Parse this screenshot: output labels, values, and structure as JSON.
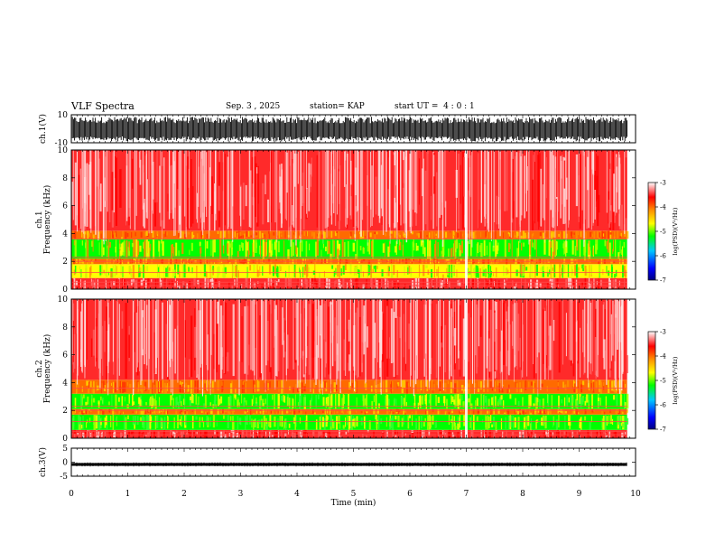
{
  "header": {
    "title": "VLF Spectra",
    "date": "Sep. 3 , 2025",
    "station": "station= KAP",
    "start": "start UT =  4 : 0 : 1"
  },
  "chart_data": [
    {
      "type": "line",
      "panel": "ch1-waveform",
      "ylabel": "ch.1(V)",
      "ylim": [
        -10,
        10
      ],
      "yticks": [
        "10",
        "-10"
      ],
      "description_series": "high-amplitude noisy waveform spanning roughly -9 to 8 V",
      "xlim": [
        0,
        10
      ],
      "data_end_min": 9.85,
      "color": "#000000"
    },
    {
      "type": "heatmap",
      "panel": "ch1-spectrogram",
      "ylabel": "ch.1\nFrequency (kHz)",
      "ylabel_lines": [
        "ch.1",
        "Frequency (kHz)"
      ],
      "ylim": [
        0,
        10
      ],
      "yticks": [
        "0",
        "2",
        "4",
        "6",
        "8",
        "10"
      ],
      "xlim": [
        0,
        10
      ],
      "data_end_min": 9.85,
      "bands": [
        {
          "from_khz": 0.0,
          "to_khz": 0.8,
          "level": "red"
        },
        {
          "from_khz": 0.8,
          "to_khz": 1.8,
          "level": "yellow-green"
        },
        {
          "from_khz": 1.8,
          "to_khz": 2.2,
          "level": "orange"
        },
        {
          "from_khz": 2.2,
          "to_khz": 3.6,
          "level": "green-yellow"
        },
        {
          "from_khz": 3.6,
          "to_khz": 4.2,
          "level": "orange"
        },
        {
          "from_khz": 4.2,
          "to_khz": 10.0,
          "level": "red"
        }
      ],
      "gap_minute": 7.0,
      "colorbar": {
        "label": "log(PSD)(V²/Hz)",
        "ticks": [
          "-3",
          "-4",
          "-5",
          "-6",
          "-7"
        ],
        "range": [
          -7,
          -3
        ],
        "colors": [
          "#000080",
          "#0000ff",
          "#00c8ff",
          "#00ff00",
          "#ffff00",
          "#ff8c00",
          "#ff0000",
          "#ffffff"
        ]
      }
    },
    {
      "type": "heatmap",
      "panel": "ch2-spectrogram",
      "ylabel": "ch.2\nFrequency (kHz)",
      "ylabel_lines": [
        "ch.2",
        "Frequency (kHz)"
      ],
      "ylim": [
        0,
        10
      ],
      "yticks": [
        "0",
        "2",
        "4",
        "6",
        "8",
        "10"
      ],
      "xlim": [
        0,
        10
      ],
      "data_end_min": 9.85,
      "bands": [
        {
          "from_khz": 0.0,
          "to_khz": 0.6,
          "level": "red"
        },
        {
          "from_khz": 0.6,
          "to_khz": 1.7,
          "level": "green"
        },
        {
          "from_khz": 1.7,
          "to_khz": 2.1,
          "level": "orange"
        },
        {
          "from_khz": 2.1,
          "to_khz": 3.2,
          "level": "green"
        },
        {
          "from_khz": 3.2,
          "to_khz": 4.2,
          "level": "orange"
        },
        {
          "from_khz": 4.2,
          "to_khz": 10.0,
          "level": "red"
        }
      ],
      "gap_minute": 7.0,
      "colorbar": {
        "label": "log(PSD)(V²/Hz)",
        "ticks": [
          "-3",
          "-4",
          "-5",
          "-6",
          "-7"
        ],
        "range": [
          -7,
          -3
        ]
      }
    },
    {
      "type": "line",
      "panel": "ch3-waveform",
      "ylabel": "ch.3(V)",
      "ylim": [
        -5,
        5
      ],
      "yticks": [
        "5",
        "0",
        "-5"
      ],
      "level_band": [
        -1.3,
        -0.3
      ],
      "xlim": [
        0,
        10
      ],
      "data_end_min": 9.85,
      "xlabel": "Time (min)",
      "xticks": [
        "0",
        "1",
        "2",
        "3",
        "4",
        "5",
        "6",
        "7",
        "8",
        "9",
        "10"
      ],
      "color": "#000000"
    }
  ]
}
